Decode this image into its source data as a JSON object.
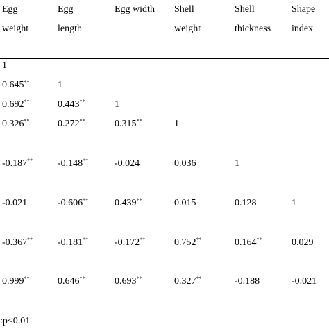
{
  "table": {
    "headers": [
      [
        "Egg",
        "weight"
      ],
      [
        "Egg",
        "length"
      ],
      [
        "Egg width",
        ""
      ],
      [
        "Shell",
        "weight"
      ],
      [
        "Shell",
        "thickness"
      ],
      [
        "Shape",
        "index"
      ]
    ],
    "rows": [
      [
        {
          "v": "1",
          "sig": ""
        }
      ],
      [
        {
          "v": "0.645",
          "sig": "**"
        },
        {
          "v": "1",
          "sig": ""
        }
      ],
      [
        {
          "v": "0.692",
          "sig": "**"
        },
        {
          "v": "0.443",
          "sig": "**"
        },
        {
          "v": "1",
          "sig": ""
        }
      ],
      [
        {
          "v": "0.326",
          "sig": "**"
        },
        {
          "v": "0.272",
          "sig": "**"
        },
        {
          "v": "0.315",
          "sig": "**"
        },
        {
          "v": "1",
          "sig": ""
        }
      ],
      [
        {
          "v": "-0.187",
          "sig": "**"
        },
        {
          "v": "-0.148",
          "sig": "**"
        },
        {
          "v": "-0.024",
          "sig": ""
        },
        {
          "v": "0.036",
          "sig": ""
        },
        {
          "v": "1",
          "sig": ""
        }
      ],
      [
        {
          "v": "-0.021",
          "sig": ""
        },
        {
          "v": "-0.606",
          "sig": "**"
        },
        {
          "v": "0.439",
          "sig": "**"
        },
        {
          "v": "0.015",
          "sig": ""
        },
        {
          "v": "0.128",
          "sig": ""
        },
        {
          "v": "1",
          "sig": ""
        }
      ],
      [
        {
          "v": "-0.367",
          "sig": "**"
        },
        {
          "v": "-0.181",
          "sig": "**"
        },
        {
          "v": "-0.172",
          "sig": "**"
        },
        {
          "v": "0.752",
          "sig": "**"
        },
        {
          "v": "0.164",
          "sig": "**"
        },
        {
          "v": "0.029",
          "sig": ""
        }
      ],
      [
        {
          "v": "0.999",
          "sig": "**"
        },
        {
          "v": "0.646",
          "sig": "**"
        },
        {
          "v": "0.693",
          "sig": "**"
        },
        {
          "v": "0.327",
          "sig": "**"
        },
        {
          "v": "-0.188",
          "sig": ""
        },
        {
          "v": "-0.021",
          "sig": ""
        }
      ]
    ],
    "footnote": ":p<0.01"
  }
}
